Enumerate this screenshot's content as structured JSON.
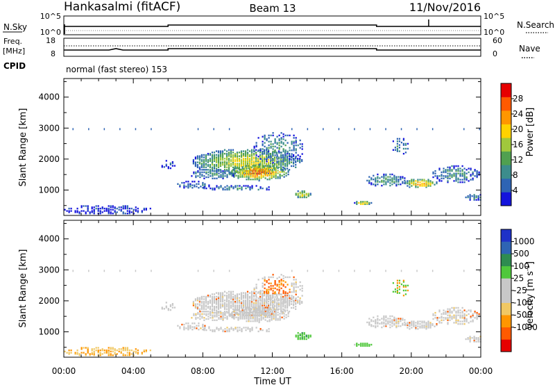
{
  "header": {
    "title": "Hankasalmi (fitACF)",
    "beam": "Beam 13",
    "date": "11/Nov/2016"
  },
  "top_panels": {
    "nsky_label": "N.Sky",
    "nsearch_label": "N.Search",
    "freq_label_1": "Freq.",
    "freq_label_2": "[MHz]",
    "nave_label": "Nave",
    "cpid_label": "CPID",
    "cpid_text": "normal (fast stereo) 153",
    "noise_ticks_left": [
      "10^5",
      "10^0"
    ],
    "noise_ticks_right": [
      "10^5",
      "10^0"
    ],
    "freq_ticks_left": [
      "18",
      "8"
    ],
    "nave_ticks_right": [
      "60",
      "0"
    ]
  },
  "colors": {
    "power": [
      "#1414dc",
      "#2e64b4",
      "#3c8c8c",
      "#50a050",
      "#a0c83c",
      "#ffd200",
      "#ff9600",
      "#ff5a00",
      "#e60000"
    ],
    "velocity": [
      "#e60000",
      "#ff5a00",
      "#ff9600",
      "#f0c864",
      "#c8c8c8",
      "#c8c8c8",
      "#50c83c",
      "#2e8c50",
      "#2e64b4",
      "#1e32c8"
    ]
  },
  "chart_data": [
    {
      "type": "heatmap",
      "name": "power-panel",
      "xlabel": "",
      "ylabel": "Slant Range [km]",
      "x_ticks": [
        "00:00",
        "04:00",
        "08:00",
        "12:00",
        "16:00",
        "20:00",
        "00:00"
      ],
      "x_range_hours": [
        0,
        24
      ],
      "y_ticks": [
        "1000",
        "2000",
        "3000",
        "4000"
      ],
      "y_range_km": [
        180,
        4600
      ],
      "colorbar_label": "Power [dB]",
      "colorbar_ticks": [
        "4",
        "8",
        "12",
        "16",
        "20",
        "24",
        "28"
      ],
      "color_range": [
        0,
        32
      ]
    },
    {
      "type": "heatmap",
      "name": "velocity-panel",
      "xlabel": "Time UT",
      "ylabel": "Slant Range [km]",
      "x_ticks": [
        "00:00",
        "04:00",
        "08:00",
        "12:00",
        "16:00",
        "20:00",
        "00:00"
      ],
      "x_range_hours": [
        0,
        24
      ],
      "y_ticks": [
        "1000",
        "2000",
        "3000",
        "4000"
      ],
      "y_range_km": [
        180,
        4600
      ],
      "colorbar_label": "Velocity [m s",
      "colorbar_label_sup": "-1",
      "colorbar_label_end": "]",
      "colorbar_ticks": [
        "1000",
        "500",
        "100",
        "25",
        "-25",
        "-100",
        "-500",
        "-1000"
      ]
    }
  ]
}
